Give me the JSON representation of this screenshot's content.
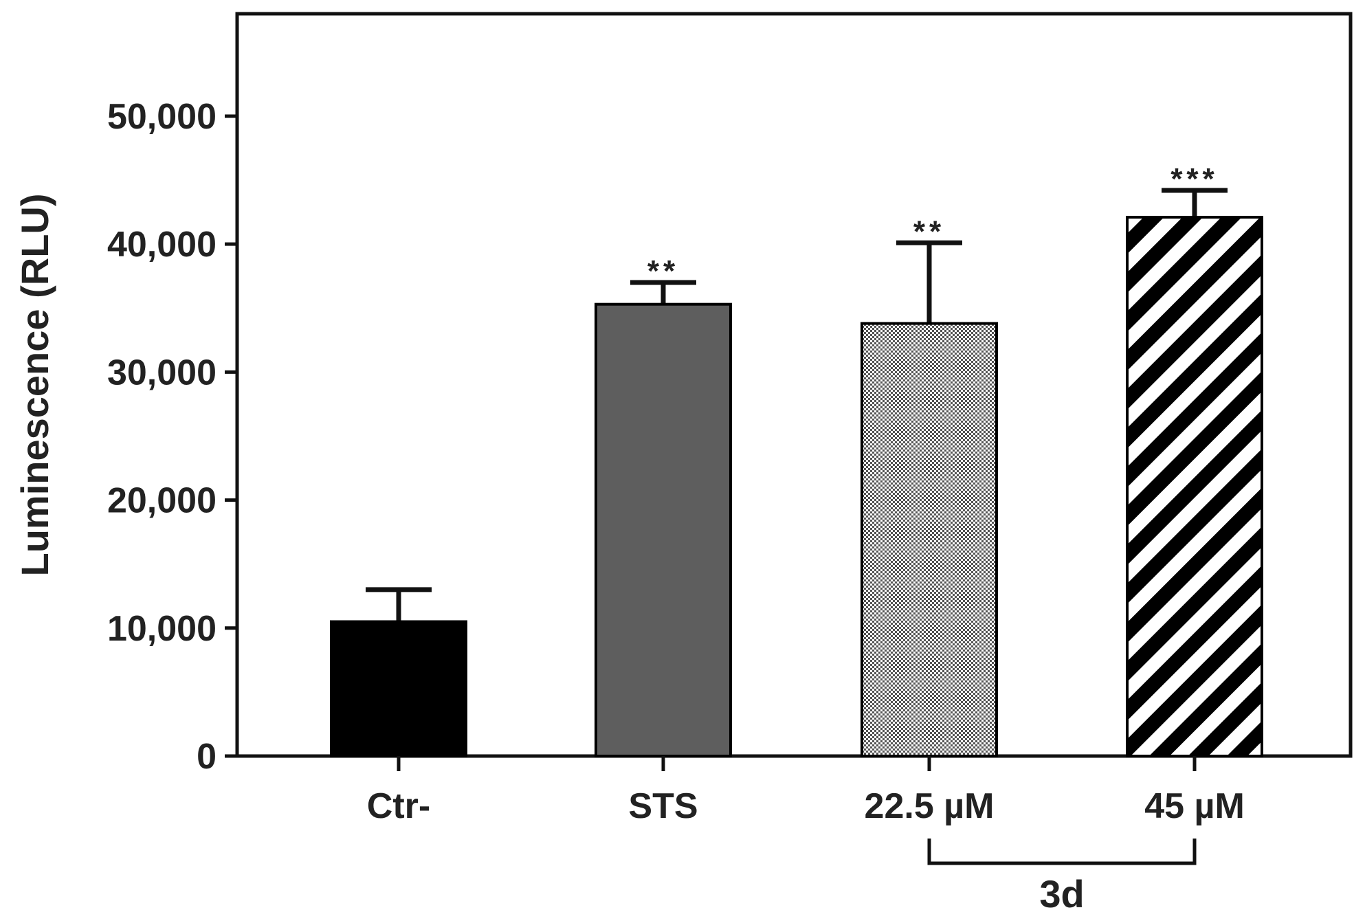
{
  "chart_data": {
    "type": "bar",
    "title": "",
    "xlabel": "",
    "ylabel": "Luminescence (RLU)",
    "ylim": [
      0,
      58000
    ],
    "yticks": [
      0,
      10000,
      20000,
      30000,
      40000,
      50000
    ],
    "ytick_labels": [
      "0",
      "10,000",
      "20,000",
      "30,000",
      "40,000",
      "50,000"
    ],
    "categories": [
      "Ctr-",
      "STS",
      "22.5 µM",
      "45 µM"
    ],
    "values": [
      10500,
      35300,
      33800,
      42100
    ],
    "errors": [
      2500,
      1700,
      6300,
      2100
    ],
    "significance": [
      "",
      "**",
      "**",
      "***"
    ],
    "fills": [
      "solid-black",
      "solid-gray",
      "checker",
      "diagonal-stripes"
    ],
    "group_label": "3d",
    "group_members": [
      "22.5 µM",
      "45 µM"
    ],
    "colors": {
      "black": "#000000",
      "gray": "#5e5e5e",
      "axis": "#111111",
      "text": "#222222"
    }
  }
}
